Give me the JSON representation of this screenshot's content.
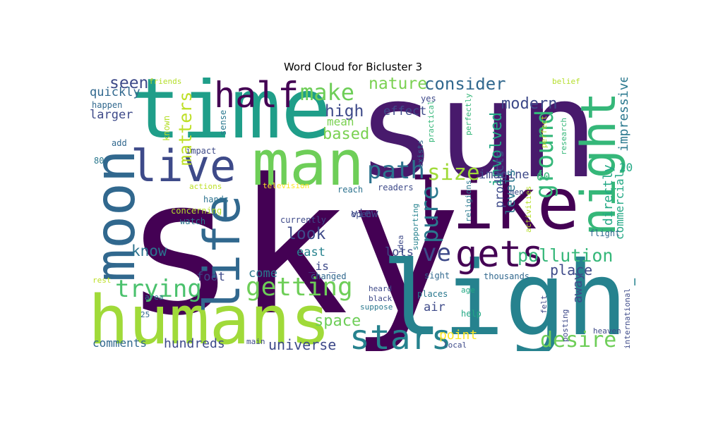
{
  "title": "Word Cloud for Bicluster 3",
  "palette": [
    "#440154",
    "#482677",
    "#3e4a89",
    "#31688e",
    "#26828e",
    "#1f9e89",
    "#35b779",
    "#6ece58",
    "#b5de2b",
    "#fde725"
  ],
  "words": [
    {
      "text": "sky",
      "c": "#440154"
    },
    {
      "text": "sun",
      "c": "#481a6c"
    },
    {
      "text": "light",
      "c": "#26828e"
    },
    {
      "text": "time",
      "c": "#1f9e89"
    },
    {
      "text": "humans",
      "c": "#a0da39"
    },
    {
      "text": "moon",
      "c": "#31688e"
    },
    {
      "text": "like",
      "c": "#440154"
    },
    {
      "text": "man",
      "c": "#6ece58"
    },
    {
      "text": "night",
      "c": "#35b779"
    },
    {
      "text": "live",
      "c": "#3e4a89"
    },
    {
      "text": "life",
      "c": "#31688e"
    },
    {
      "text": "half",
      "c": "#440154"
    },
    {
      "text": "gets",
      "c": "#440154"
    },
    {
      "text": "stars",
      "c": "#26828e"
    },
    {
      "text": "ground",
      "c": "#35b779"
    },
    {
      "text": "getting",
      "c": "#6ece58"
    },
    {
      "text": "trying",
      "c": "#4ac16d"
    },
    {
      "text": "path",
      "c": "#2c728e"
    },
    {
      "text": "make",
      "c": "#6ece58"
    },
    {
      "text": "size",
      "c": "#a0da39"
    },
    {
      "text": "desire",
      "c": "#6ece58"
    },
    {
      "text": "pure",
      "c": "#2a788e"
    },
    {
      "text": "ve",
      "c": "#3e4a89"
    },
    {
      "text": "pollution",
      "c": "#35b779"
    },
    {
      "text": "consider",
      "c": "#31688e"
    },
    {
      "text": "modern",
      "c": "#3e4a89"
    },
    {
      "text": "nature",
      "c": "#7ad151"
    },
    {
      "text": "matters",
      "c": "#bddf26"
    },
    {
      "text": "seen",
      "c": "#3e4a89"
    },
    {
      "text": "involved",
      "c": "#22a884"
    },
    {
      "text": "high",
      "c": "#3e4a89"
    },
    {
      "text": "based",
      "c": "#7ad151"
    },
    {
      "text": "space",
      "c": "#6ece58"
    },
    {
      "text": "universe",
      "c": "#3e4a89"
    },
    {
      "text": "look",
      "c": "#3e4a89"
    },
    {
      "text": "know",
      "c": "#2c728e"
    },
    {
      "text": "point",
      "c": "#fde725"
    },
    {
      "text": "place",
      "c": "#3e4a89"
    },
    {
      "text": "hundreds",
      "c": "#3e4a89"
    },
    {
      "text": "comments",
      "c": "#31688e"
    },
    {
      "text": "impressive",
      "c": "#2a788e"
    },
    {
      "text": "directly",
      "c": "#22a884"
    },
    {
      "text": "commercial",
      "c": "#22a884"
    },
    {
      "text": "away",
      "c": "#3e4a89"
    },
    {
      "text": "imagine",
      "c": "#3e4a89"
    },
    {
      "text": "effect",
      "c": "#3e4a89"
    },
    {
      "text": "quickly",
      "c": "#31688e"
    },
    {
      "text": "larger",
      "c": "#3e4a89"
    },
    {
      "text": "east",
      "c": "#26828e"
    },
    {
      "text": "foot",
      "c": "#3e4a89"
    },
    {
      "text": "come",
      "c": "#2a788e"
    },
    {
      "text": "mean",
      "c": "#7ad151"
    },
    {
      "text": "lots",
      "c": "#3e4a89"
    },
    {
      "text": "levels",
      "c": "#2a788e"
    },
    {
      "text": "products",
      "c": "#3e4a89"
    },
    {
      "text": "air",
      "c": "#3e4a89"
    },
    {
      "text": "view",
      "c": "#3e4a89"
    },
    {
      "text": "_is_",
      "c": "#3e4a89"
    },
    {
      "text": "60",
      "c": "#35b779"
    },
    {
      "text": "20",
      "c": "#22a884"
    },
    {
      "text": "friends",
      "c": "#b5de2b"
    },
    {
      "text": "happen",
      "c": "#31688e"
    },
    {
      "text": "known",
      "c": "#b5de2b"
    },
    {
      "text": "sense",
      "c": "#2a788e"
    },
    {
      "text": "add",
      "c": "#31688e"
    },
    {
      "text": "impact",
      "c": "#3e4a89"
    },
    {
      "text": "80",
      "c": "#2a788e"
    },
    {
      "text": "actions",
      "c": "#bddf26"
    },
    {
      "text": "television",
      "c": "#fde725"
    },
    {
      "text": "concerning",
      "c": "#b5de2b"
    },
    {
      "text": "hands",
      "c": "#2c728e"
    },
    {
      "text": "watch",
      "c": "#2a788e"
    },
    {
      "text": "currently",
      "c": "#3e4a89"
    },
    {
      "text": "open",
      "c": "#3e4a89"
    },
    {
      "text": "reach",
      "c": "#2c728e"
    },
    {
      "text": "readers",
      "c": "#3e4a89"
    },
    {
      "text": "idea",
      "c": "#3e4a89"
    },
    {
      "text": "supporting",
      "c": "#26828e"
    },
    {
      "text": "religions",
      "c": "#2a788e"
    },
    {
      "text": "changed",
      "c": "#31688e"
    },
    {
      "text": "heard",
      "c": "#3e4a89"
    },
    {
      "text": "black",
      "c": "#3e4a89"
    },
    {
      "text": "suppose",
      "c": "#2a788e"
    },
    {
      "text": "places",
      "c": "#2a788e"
    },
    {
      "text": "thousands",
      "c": "#31688e"
    },
    {
      "text": "sight",
      "c": "#31688e"
    },
    {
      "text": "age",
      "c": "#22a884"
    },
    {
      "text": "help",
      "c": "#22a884"
    },
    {
      "text": "local",
      "c": "#3e4a89"
    },
    {
      "text": "rest",
      "c": "#bddf26"
    },
    {
      "text": "area",
      "c": "#2a788e"
    },
    {
      "text": "25",
      "c": "#31688e"
    },
    {
      "text": "main",
      "c": "#3e4a89"
    },
    {
      "text": "men",
      "c": "#3e4a89"
    },
    {
      "text": "activities",
      "c": "#b5de2b"
    },
    {
      "text": "felt",
      "c": "#3e4a89"
    },
    {
      "text": "posting",
      "c": "#3e4a89"
    },
    {
      "text": "heaven",
      "c": "#3e4a89"
    },
    {
      "text": "international",
      "c": "#3e4a89"
    },
    {
      "text": "flight",
      "c": "#31688e"
    },
    {
      "text": "yes",
      "c": "#3e4a89"
    },
    {
      "text": "exists",
      "c": "#31688e"
    },
    {
      "text": "practical",
      "c": "#35b779"
    },
    {
      "text": "perfectly",
      "c": "#35b779"
    },
    {
      "text": "perfect",
      "c": "#b5de2b"
    },
    {
      "text": "research",
      "c": "#35b779"
    },
    {
      "text": "belief",
      "c": "#b5de2b"
    }
  ]
}
